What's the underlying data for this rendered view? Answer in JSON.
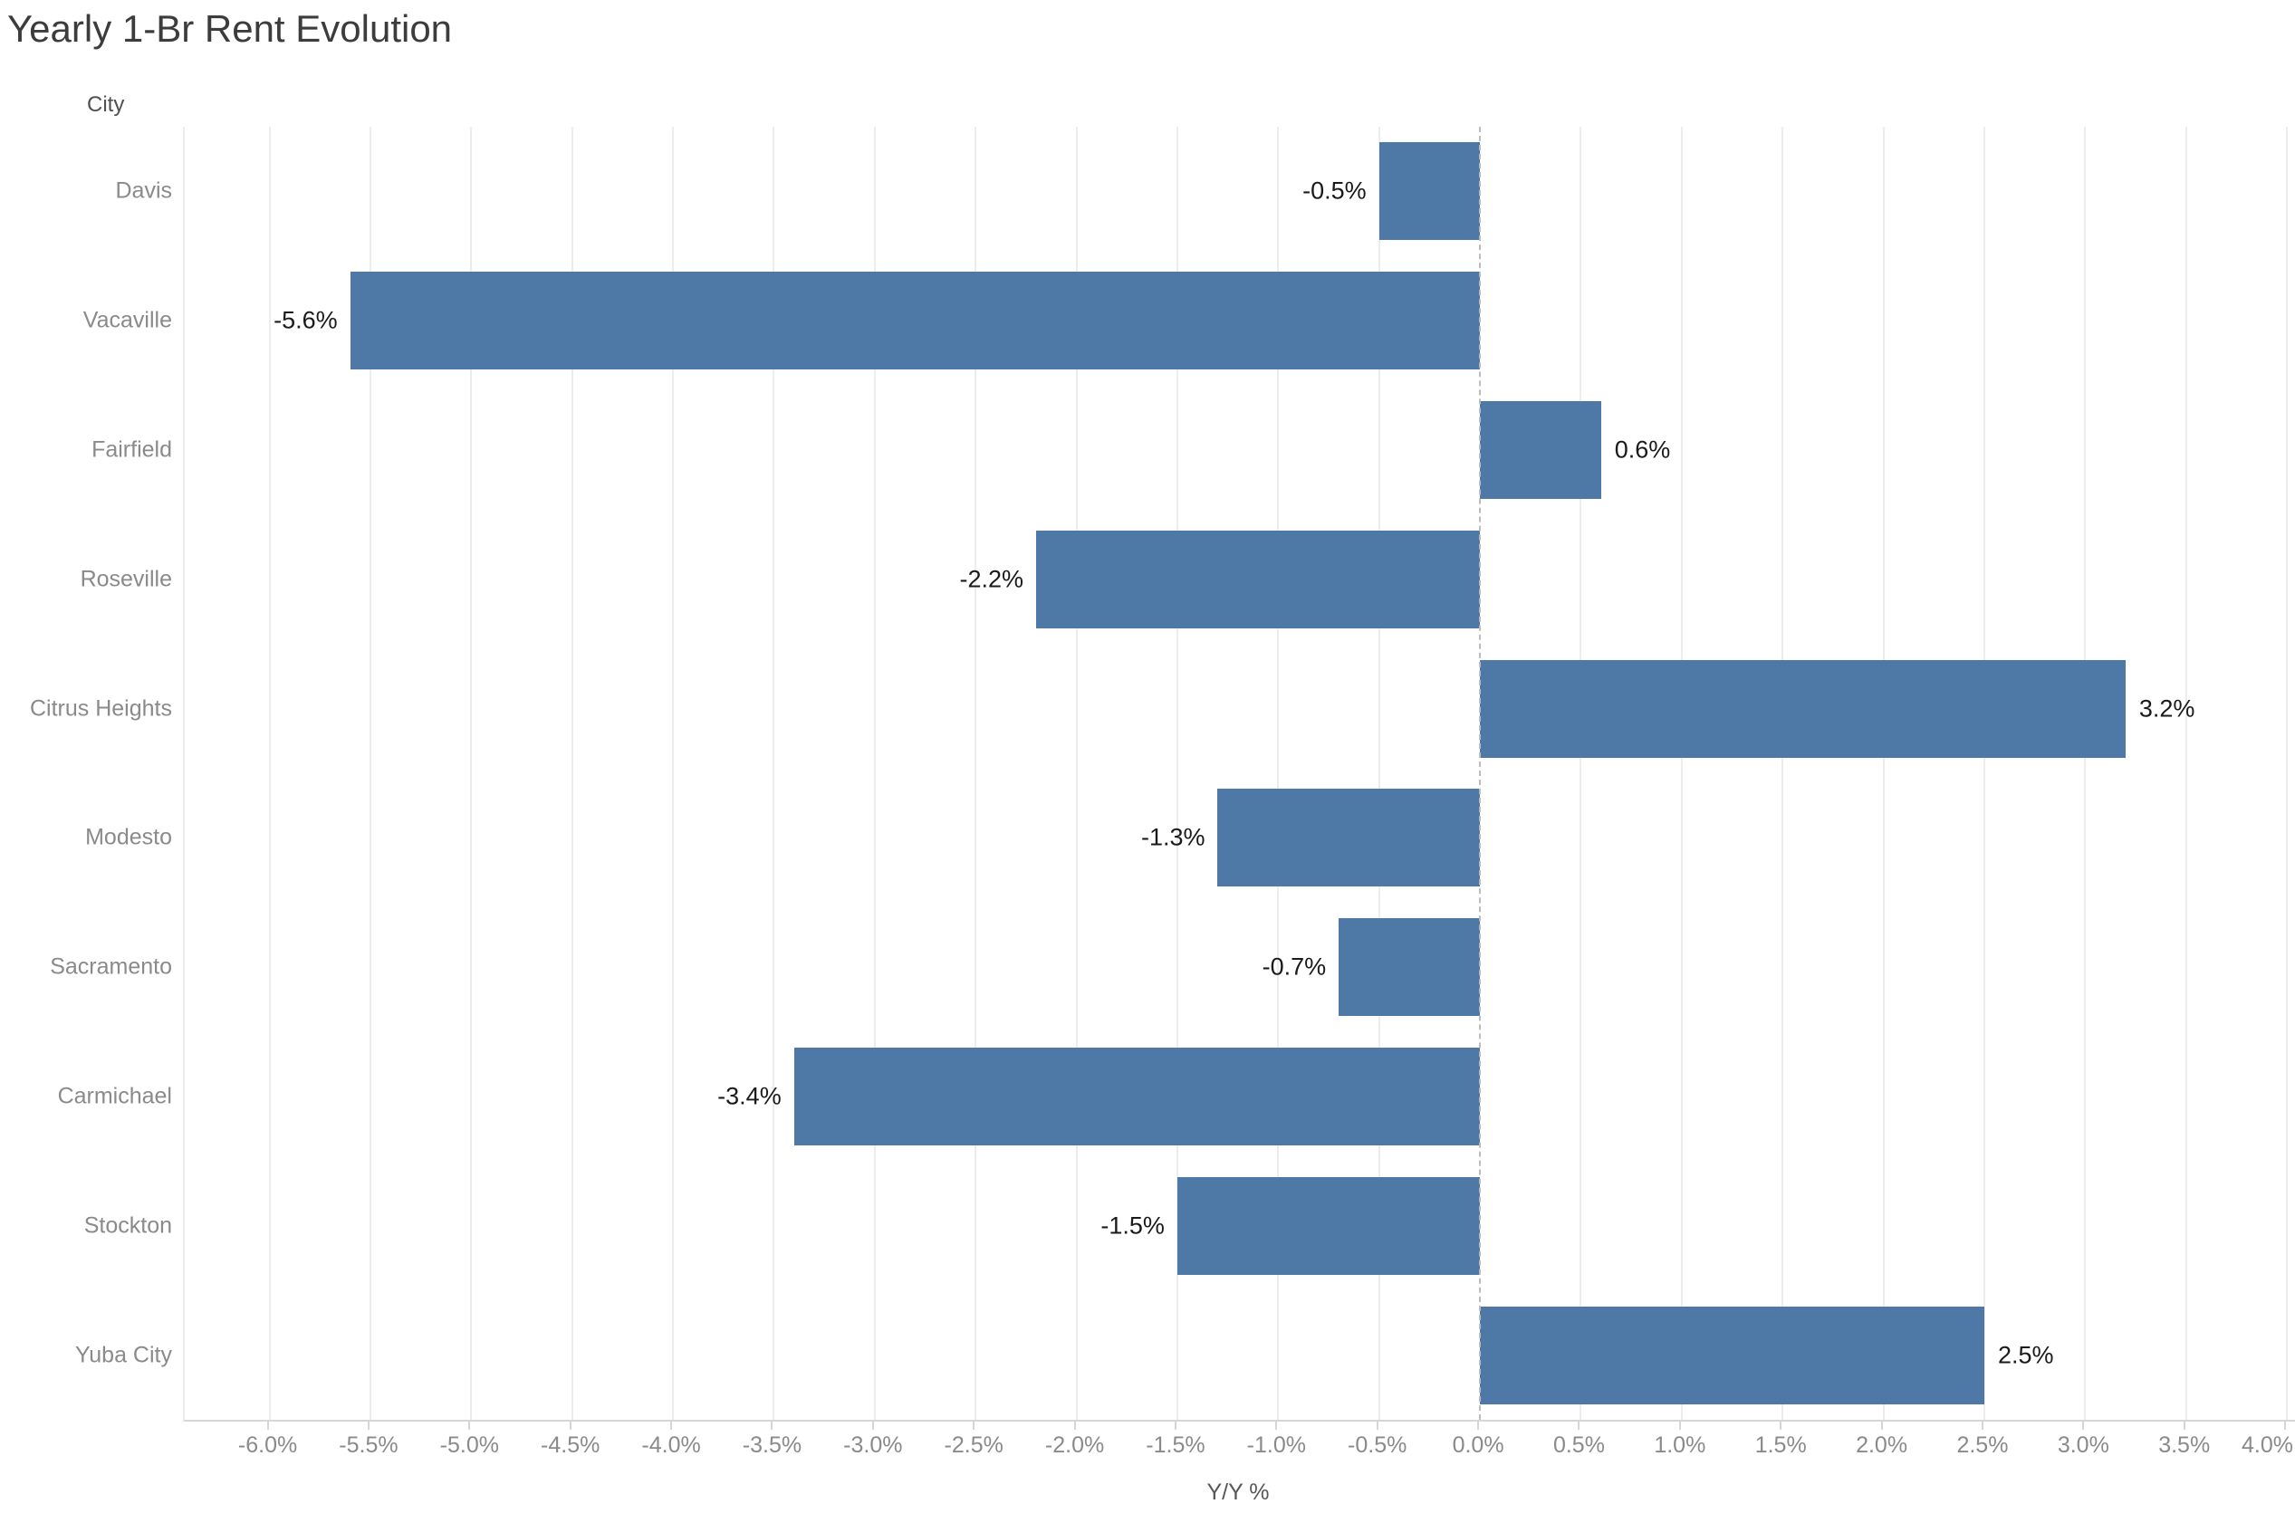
{
  "chart_data": {
    "type": "bar",
    "orientation": "horizontal",
    "title": "Yearly 1-Br Rent Evolution",
    "row_field_label": "City",
    "xlabel": "Y/Y %",
    "categories": [
      "Davis",
      "Vacaville",
      "Fairfield",
      "Roseville",
      "Citrus Heights",
      "Modesto",
      "Sacramento",
      "Carmichael",
      "Stockton",
      "Yuba City"
    ],
    "values": [
      -0.5,
      -5.6,
      0.6,
      -2.2,
      3.2,
      -1.3,
      -0.7,
      -3.4,
      -1.5,
      2.5
    ],
    "value_labels": [
      "-0.5%",
      "-5.6%",
      "0.6%",
      "-2.2%",
      "3.2%",
      "-1.3%",
      "-0.7%",
      "-3.4%",
      "-1.5%",
      "2.5%"
    ],
    "xlim": [
      -6.42,
      4.04
    ],
    "xticks": {
      "values": [
        -6,
        -5.5,
        -5,
        -4.5,
        -4,
        -3.5,
        -3,
        -2.5,
        -2,
        -1.5,
        -1,
        -0.5,
        0,
        0.5,
        1,
        1.5,
        2,
        2.5,
        3,
        3.5,
        4
      ],
      "labels": [
        "-6.0%",
        "-5.5%",
        "-5.0%",
        "-4.5%",
        "-4.0%",
        "-3.5%",
        "-3.0%",
        "-2.5%",
        "-2.0%",
        "-1.5%",
        "-1.0%",
        "-0.5%",
        "0.0%",
        "0.5%",
        "1.0%",
        "1.5%",
        "2.0%",
        "2.5%",
        "3.0%",
        "3.5%",
        "4.0%"
      ],
      "zero_value": 0
    },
    "grid": "vertical-on",
    "zero_line_style": "dashed",
    "legend": "none",
    "colors": {
      "bar": "#4e79a7",
      "gridline": "#ededed",
      "zero_line": "#bcbcbc",
      "axis_line": "#d6d6d6",
      "tick_label": "#8a8a8a",
      "row_label": "#8a8a8a",
      "data_label": "#1a1a1a",
      "title": "#3c3c3c",
      "axis_title": "#575757",
      "field_label": "#4f4f4f",
      "background": "#ffffff"
    }
  }
}
